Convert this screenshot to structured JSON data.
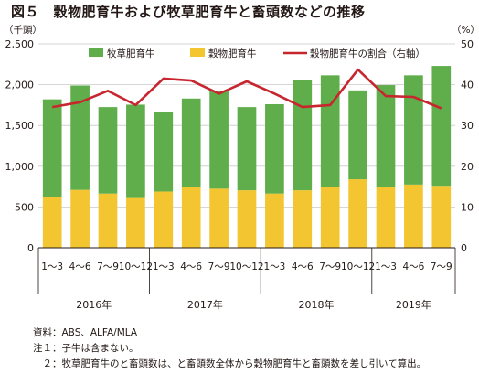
{
  "title": "図５　穀物肥育牛および牧草肥育牛と畜頭数などの推移",
  "notes": {
    "source": "資料：ABS、ALFA/MLA",
    "note1": "注１：子牛は含まない。",
    "note2": "　２：牧草肥育牛のと畜頭数は、と畜頭数全体から穀物肥育牛と畜頭数を差し引いて算出。"
  },
  "chart_data": {
    "type": "bar",
    "stacked": true,
    "categories": [
      "1～3",
      "4～6",
      "7～9",
      "10～12",
      "1～3",
      "4～6",
      "7～9",
      "10～12",
      "1～3",
      "4～6",
      "7～9",
      "10～12",
      "1～3",
      "4～6",
      "7～9"
    ],
    "years": [
      {
        "label": "2016年",
        "start": 0,
        "end": 3
      },
      {
        "label": "2017年",
        "start": 4,
        "end": 7
      },
      {
        "label": "2018年",
        "start": 8,
        "end": 11
      },
      {
        "label": "2019年",
        "start": 12,
        "end": 14
      }
    ],
    "series": [
      {
        "name": "穀物肥育牛",
        "color": "#f2c531",
        "axis": "left",
        "values": [
          625,
          710,
          665,
          610,
          690,
          745,
          725,
          705,
          665,
          705,
          740,
          840,
          740,
          775,
          760
        ]
      },
      {
        "name": "牧草肥育牛",
        "color": "#5fae4b",
        "axis": "left",
        "values": [
          1195,
          1280,
          1060,
          1145,
          980,
          1085,
          1200,
          1020,
          1095,
          1350,
          1375,
          1090,
          1255,
          1340,
          1470
        ]
      },
      {
        "name": "穀物肥育牛の割合（右軸）",
        "color": "#c8262e",
        "axis": "right",
        "type": "line",
        "values": [
          34.5,
          35.7,
          38.5,
          35.0,
          41.5,
          41.0,
          37.8,
          40.8,
          37.8,
          34.5,
          35.0,
          43.7,
          37.2,
          37.0,
          34.2
        ]
      }
    ],
    "yleft": {
      "label": "（千頭）",
      "min": 0,
      "max": 2500,
      "ticks": [
        0,
        500,
        1000,
        1500,
        2000,
        2500
      ],
      "tick_labels": [
        "0",
        "500",
        "1,000",
        "1,500",
        "2,000",
        "2,500"
      ]
    },
    "yright": {
      "label": "（%）",
      "min": 0,
      "max": 50,
      "ticks": [
        0,
        10,
        20,
        30,
        40,
        50
      ],
      "tick_labels": [
        "0",
        "10",
        "20",
        "30",
        "40",
        "50"
      ]
    },
    "grid": true,
    "legend": "top"
  }
}
